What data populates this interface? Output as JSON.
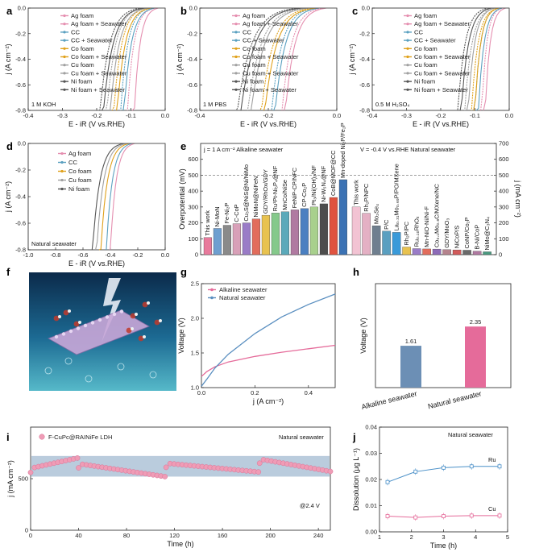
{
  "chart_data": [
    {
      "panel": "a",
      "type": "line",
      "xlabel": "E - iR (V vs.RHE)",
      "ylabel": "j (A cm⁻²)",
      "xlim": [
        -0.4,
        0.0
      ],
      "ylim": [
        -0.8,
        0.0
      ],
      "xticks": [
        "-0.4",
        "-0.3",
        "-0.2",
        "-0.1",
        "0.0"
      ],
      "yticks": [
        "-0.8",
        "-0.6",
        "-0.4",
        "-0.2",
        "0.0"
      ],
      "annotation": "1 M KOH",
      "series": [
        {
          "name": "Ag foam",
          "color": "#e58fb0",
          "onset": -0.02,
          "x80": -0.09
        },
        {
          "name": "Ag foam + Seawater",
          "color": "#e58fb0",
          "onset": -0.03,
          "x80": -0.11
        },
        {
          "name": "CC",
          "color": "#5aa0c0",
          "onset": -0.03,
          "x80": -0.12
        },
        {
          "name": "CC + Seawater",
          "color": "#5aa0c0",
          "onset": -0.04,
          "x80": -0.13
        },
        {
          "name": "Co foam",
          "color": "#e0a11b",
          "onset": -0.04,
          "x80": -0.14
        },
        {
          "name": "Co foam + Seawater",
          "color": "#e0a11b",
          "onset": -0.05,
          "x80": -0.15
        },
        {
          "name": "Cu foam",
          "color": "#a0a0a0",
          "onset": -0.05,
          "x80": -0.16
        },
        {
          "name": "Cu foam + Seawater",
          "color": "#a0a0a0",
          "onset": -0.06,
          "x80": -0.17
        },
        {
          "name": "Ni foam",
          "color": "#555555",
          "onset": -0.06,
          "x80": -0.18
        },
        {
          "name": "Ni foam + Seawater",
          "color": "#555555",
          "onset": -0.07,
          "x80": -0.19
        }
      ]
    },
    {
      "panel": "b",
      "type": "line",
      "xlabel": "E - iR (V vs.RHE)",
      "ylabel": "j (A cm⁻²)",
      "xlim": [
        -0.4,
        0.0
      ],
      "ylim": [
        -0.8,
        0.0
      ],
      "xticks": [
        "-0.4",
        "-0.2",
        "0.0"
      ],
      "yticks": [
        "-0.8",
        "-0.6",
        "-0.4",
        "-0.2",
        "0.0"
      ],
      "annotation": "1 M PBS",
      "series": [
        {
          "name": "Ag foam",
          "color": "#e58fb0",
          "onset": -0.03,
          "x80": -0.15
        },
        {
          "name": "Ag foam + Seawater",
          "color": "#e58fb0",
          "onset": -0.04,
          "x80": -0.16
        },
        {
          "name": "CC",
          "color": "#5aa0c0",
          "onset": -0.05,
          "x80": -0.18
        },
        {
          "name": "CC + Seawater",
          "color": "#5aa0c0",
          "onset": -0.06,
          "x80": -0.19
        },
        {
          "name": "Co foam",
          "color": "#e0a11b",
          "onset": -0.06,
          "x80": -0.21
        },
        {
          "name": "Co foam + Seawater",
          "color": "#e0a11b",
          "onset": -0.07,
          "x80": -0.22
        },
        {
          "name": "Cu foam",
          "color": "#a0a0a0",
          "onset": -0.08,
          "x80": -0.25
        },
        {
          "name": "Cu foam + Seawater",
          "color": "#a0a0a0",
          "onset": -0.09,
          "x80": -0.26
        },
        {
          "name": "Ni foam",
          "color": "#555555",
          "onset": -0.1,
          "x80": -0.28
        },
        {
          "name": "Ni foam + Seawater",
          "color": "#555555",
          "onset": -0.11,
          "x80": -0.29
        }
      ]
    },
    {
      "panel": "c",
      "type": "line",
      "xlabel": "E - iR (V vs.RHE)",
      "ylabel": "j (A cm⁻²)",
      "xlim": [
        -0.4,
        0.0
      ],
      "ylim": [
        -0.8,
        0.0
      ],
      "xticks": [
        "-0.4",
        "-0.3",
        "-0.2",
        "-0.1",
        "0.0"
      ],
      "yticks": [
        "-0.8",
        "-0.6",
        "-0.4",
        "-0.2",
        "0.0"
      ],
      "annotation": "0.5 M H₂SO₄",
      "series": [
        {
          "name": "Ag foam",
          "color": "#e58fb0",
          "onset": -0.01,
          "x80": -0.07
        },
        {
          "name": "Ag foam + Seawater",
          "color": "#e58fb0",
          "onset": -0.02,
          "x80": -0.08
        },
        {
          "name": "CC",
          "color": "#5aa0c0",
          "onset": -0.02,
          "x80": -0.09
        },
        {
          "name": "CC + Seawater",
          "color": "#5aa0c0",
          "onset": -0.03,
          "x80": -0.1
        },
        {
          "name": "Co foam",
          "color": "#e0a11b",
          "onset": -0.03,
          "x80": -0.1
        },
        {
          "name": "Co foam + Seawater",
          "color": "#e0a11b",
          "onset": -0.03,
          "x80": -0.11
        },
        {
          "name": "Cu foam",
          "color": "#a0a0a0",
          "onset": -0.04,
          "x80": -0.12
        },
        {
          "name": "Cu foam + Seawater",
          "color": "#a0a0a0",
          "onset": -0.04,
          "x80": -0.13
        },
        {
          "name": "Ni foam",
          "color": "#555555",
          "onset": -0.05,
          "x80": -0.14
        },
        {
          "name": "Ni foam + Seawater",
          "color": "#555555",
          "onset": -0.06,
          "x80": -0.15
        }
      ]
    },
    {
      "panel": "d",
      "type": "line",
      "xlabel": "E - iR (V vs.RHE)",
      "ylabel": "j (A cm⁻²)",
      "xlim": [
        -1.0,
        0.0
      ],
      "ylim": [
        -0.8,
        0.0
      ],
      "xticks": [
        "-1.0",
        "-0.8",
        "-0.6",
        "-0.4",
        "-0.2",
        "0.0"
      ],
      "yticks": [
        "-0.8",
        "-0.6",
        "-0.4",
        "-0.2",
        "0.0"
      ],
      "annotation": "Natural seawater",
      "series": [
        {
          "name": "Ag foam",
          "color": "#e58fb0",
          "onset": -0.22,
          "x80": -0.4
        },
        {
          "name": "CC",
          "color": "#5aa0c0",
          "onset": -0.24,
          "x80": -0.43
        },
        {
          "name": "Co foam",
          "color": "#e0a11b",
          "onset": -0.26,
          "x80": -0.47
        },
        {
          "name": "Cu foam",
          "color": "#a0a0a0",
          "onset": -0.28,
          "x80": -0.5
        },
        {
          "name": "Ni foam",
          "color": "#555555",
          "onset": -0.3,
          "x80": -0.53
        }
      ]
    },
    {
      "panel": "e",
      "type": "bar",
      "ylabel": "Overpotential (mV)",
      "ylabel_right": "j (mA cm⁻²)",
      "ylim": [
        0,
        700
      ],
      "ylim_right": [
        0,
        700
      ],
      "yticks": [
        "0",
        "100",
        "200",
        "300",
        "400",
        "500",
        "600"
      ],
      "yticks_right": [
        "0",
        "100",
        "200",
        "300",
        "400",
        "500",
        "600",
        "700"
      ],
      "left_title": "j = 1 A cm⁻²  Alkaline seawater",
      "right_title": "V = -0.4 V vs.RHE    Natural seawater",
      "dashed_line_value": 500,
      "left_categories": [
        "This work",
        "Ni-MoN",
        "Fe-Ni₂P",
        "C-CoP",
        "Cu₃S@NiS@Ni/NiMo",
        "NiMoN@NiFeN",
        "GDY/RhOx/GDY",
        "Ru¹Pt-Ni₅P₄@NF",
        "MnCo/NiSe",
        "FeNiP-CP/NFC",
        "CP-Co₂P",
        "Pt₃/Ni(OH)₂/NF",
        "Ni-W₅N₄@NF",
        "CoB@MOF@CC",
        "Mn-doped Ni₂P/Fe₂P"
      ],
      "left_values": [
        108,
        165,
        185,
        195,
        200,
        225,
        248,
        262,
        270,
        282,
        290,
        300,
        320,
        360,
        472
      ],
      "left_colors": [
        "#e87a9c",
        "#6e9fd0",
        "#8a8a8a",
        "#d8a0b8",
        "#9a7cc7",
        "#e26d5c",
        "#e8c24f",
        "#85c98b",
        "#5ba9ba",
        "#b07aa1",
        "#4a7fc1",
        "#a8d08d",
        "#4d4d4d",
        "#e0533f",
        "#3b72b4"
      ],
      "right_categories": [
        "This work",
        "Rh₂P/NPC",
        "Mo₂Se₄",
        "P/C",
        "La₀.₃₁Mo₀.₆₉P/PO/MXene",
        "Rh₂P/PC",
        "Ru₀.₁₀RhOₓ",
        "Mn-NiO-Ni/Ni-F",
        "Co₀.₁Mo₀.₉C/MXene/NC",
        "GDY/MoO₃",
        "NiCoP/S",
        "CoNP/Co₂P",
        "B-Ni/CoP",
        "NiMo@C₃N₄"
      ],
      "right_values": [
        300,
        260,
        182,
        148,
        140,
        48,
        38,
        36,
        35,
        32,
        30,
        28,
        22,
        18
      ],
      "right_colors": [
        "#f2c3d3",
        "#e4b0c4",
        "#6f7f8f",
        "#5a9fc0",
        "#3a9ad9",
        "#e8c24f",
        "#9a7cc7",
        "#e26d5c",
        "#8d6bb8",
        "#b5838d",
        "#d25b5b",
        "#6b6b6b",
        "#b07aa1",
        "#4a9a80"
      ]
    },
    {
      "panel": "g",
      "type": "line",
      "xlabel": "j (A cm⁻²)",
      "ylabel": "Voltage (V)",
      "xlim": [
        0,
        0.5
      ],
      "ylim": [
        1.0,
        2.5
      ],
      "xticks": [
        "0.0",
        "0.2",
        "0.4"
      ],
      "yticks": [
        "1.0",
        "1.5",
        "2.0",
        "2.5"
      ],
      "series": [
        {
          "name": "Alkaline seawater",
          "color": "#e56b9a",
          "x": [
            0,
            0.02,
            0.05,
            0.1,
            0.2,
            0.3,
            0.4,
            0.5
          ],
          "y": [
            1.16,
            1.23,
            1.3,
            1.37,
            1.45,
            1.51,
            1.56,
            1.61
          ]
        },
        {
          "name": "Natural seawater",
          "color": "#5a8fc0",
          "x": [
            0,
            0.02,
            0.05,
            0.1,
            0.2,
            0.3,
            0.4,
            0.5
          ],
          "y": [
            1.02,
            1.12,
            1.28,
            1.48,
            1.78,
            2.02,
            2.2,
            2.35
          ]
        }
      ]
    },
    {
      "panel": "h",
      "type": "bar",
      "ylabel": "Voltage (V)",
      "ylim": [
        0,
        4
      ],
      "categories": [
        "Alkaline seawater",
        "Natural seawater"
      ],
      "values": [
        1.61,
        2.35
      ],
      "value_labels": [
        "1.61",
        "2.35"
      ],
      "colors": [
        "#6c8fb5",
        "#e56b9a"
      ]
    },
    {
      "panel": "i",
      "type": "scatter",
      "xlabel": "Time (h)",
      "ylabel": "j (mA cm⁻²)",
      "xlim": [
        0,
        250
      ],
      "ylim": [
        0,
        1000
      ],
      "xticks": [
        "0",
        "40",
        "80",
        "120",
        "160",
        "200",
        "240"
      ],
      "yticks": [
        "0",
        "500"
      ],
      "legend": "F-CuPc@RAINiFe LDH",
      "annotation": "Natural seawater",
      "voltage_label": "@2.4 V",
      "band": [
        520,
        720
      ],
      "segments": [
        {
          "t0": 0,
          "t1": 39,
          "j0": 600,
          "j1": 700
        },
        {
          "t0": 40,
          "t1": 112,
          "j0": 645,
          "j1": 520
        },
        {
          "t0": 113,
          "t1": 190,
          "j0": 650,
          "j1": 565
        },
        {
          "t0": 191,
          "t1": 250,
          "j0": 690,
          "j1": 570
        }
      ]
    },
    {
      "panel": "j",
      "type": "line",
      "xlabel": "Time (h)",
      "ylabel": "Dissolution (μg L⁻¹)",
      "xlim": [
        1,
        5
      ],
      "ylim": [
        0,
        0.04
      ],
      "xticks": [
        "1",
        "2",
        "3",
        "4",
        "5"
      ],
      "yticks": [
        "0.00",
        "0.01",
        "0.02",
        "0.03",
        "0.04"
      ],
      "annotation": "Natural seawater",
      "series": [
        {
          "name": "Ru",
          "color": "#4a90c8",
          "x": [
            1,
            2,
            3,
            4,
            5
          ],
          "y": [
            0.019,
            0.023,
            0.0245,
            0.025,
            0.025
          ]
        },
        {
          "name": "Cu",
          "color": "#e56b9a",
          "x": [
            1,
            2,
            3,
            4,
            5
          ],
          "y": [
            0.006,
            0.0055,
            0.006,
            0.0062,
            0.0062
          ]
        }
      ]
    }
  ],
  "panel_letters": [
    "a",
    "b",
    "c",
    "d",
    "e",
    "f",
    "g",
    "h",
    "i",
    "j"
  ]
}
